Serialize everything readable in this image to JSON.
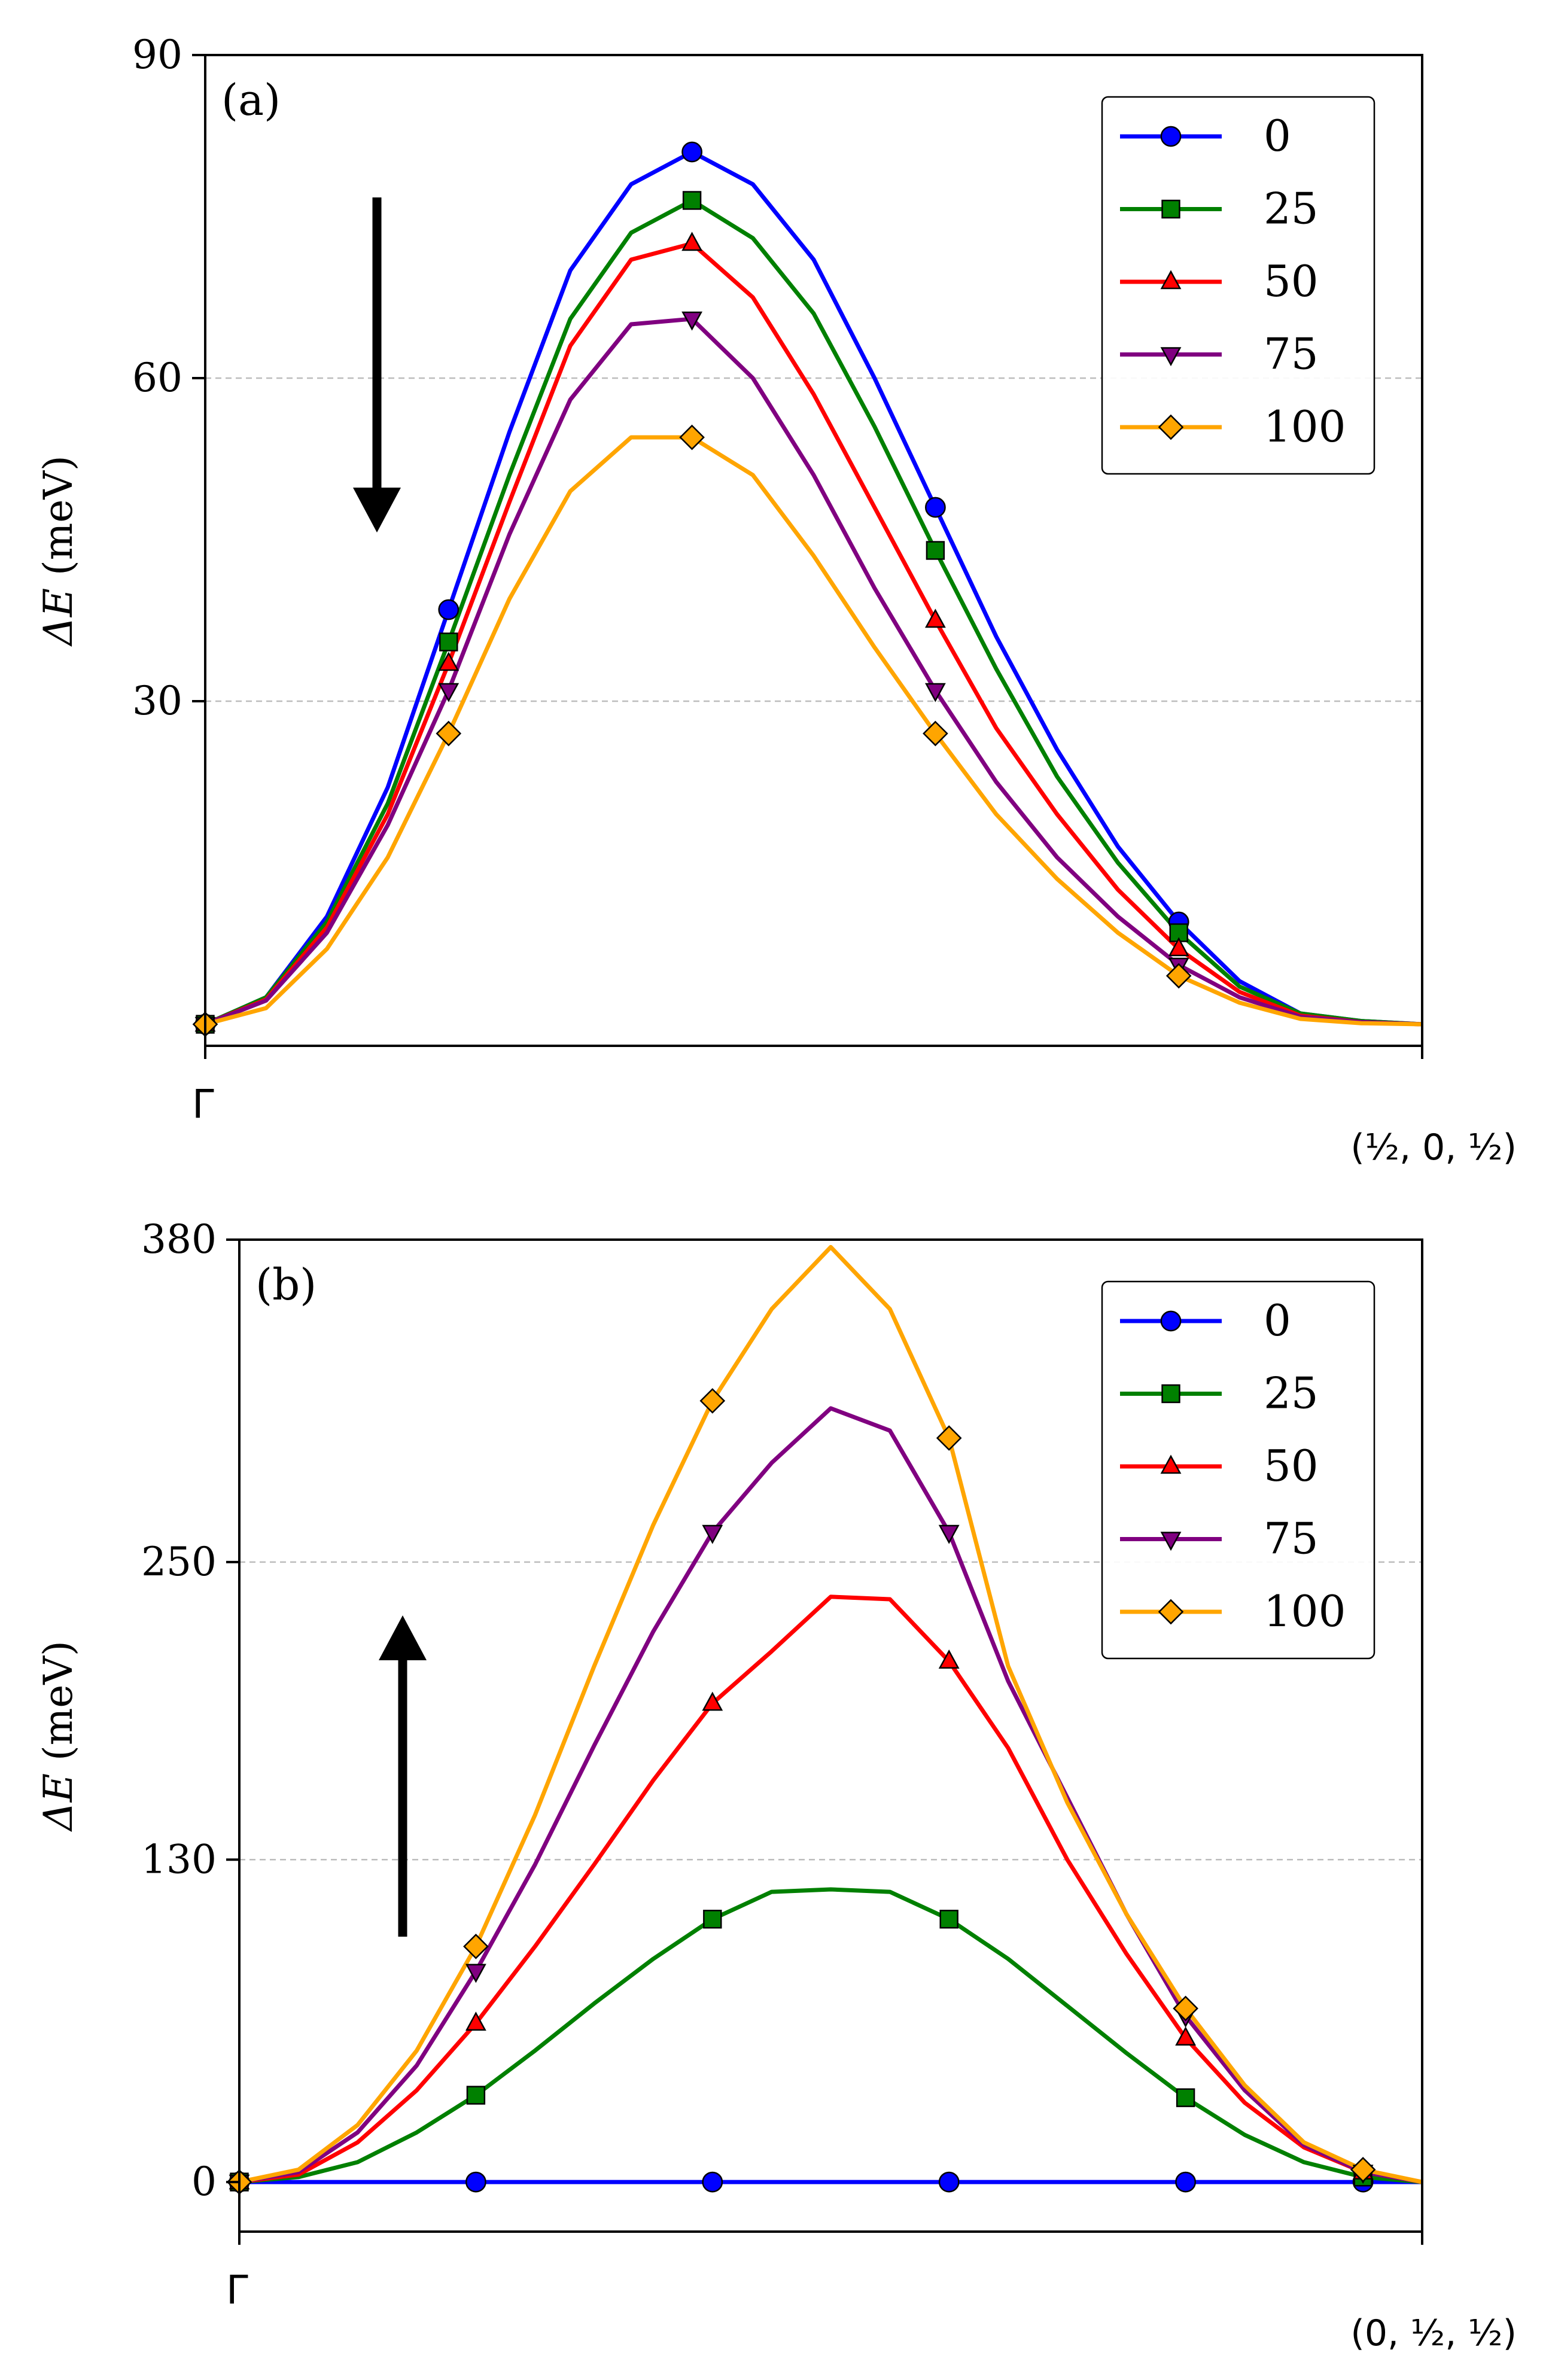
{
  "chart_data": [
    {
      "panel_label": "(a)",
      "type": "line",
      "ylabel_prefix": "ΔE",
      "ylabel_unit": " (meV)",
      "xtick_start": "Γ",
      "xtick_end": "(½, 0, ½)",
      "x": [
        0,
        0.05,
        0.1,
        0.15,
        0.2,
        0.25,
        0.3,
        0.35,
        0.4,
        0.45,
        0.5,
        0.55,
        0.6,
        0.65,
        0.7,
        0.75,
        0.8,
        0.85,
        0.9,
        0.95,
        1.0
      ],
      "marker_indices": [
        0,
        4,
        8,
        12,
        16
      ],
      "ylim": [
        -2,
        90
      ],
      "yticks": [
        30,
        60,
        90
      ],
      "grid": "horizontal dashed",
      "legend_position": "top-right",
      "arrow_direction": "down",
      "series": [
        {
          "name": "0",
          "color": "#0000ff",
          "marker": "circle",
          "values": [
            0,
            2.5,
            10,
            22,
            38.5,
            55,
            70,
            78,
            81,
            78,
            71,
            60,
            48,
            36,
            25.5,
            16.5,
            9.5,
            4,
            1,
            0.3,
            0
          ]
        },
        {
          "name": "25",
          "color": "#008000",
          "marker": "square",
          "values": [
            0,
            2.5,
            9.5,
            20.5,
            35.5,
            51,
            65.5,
            73.5,
            76.5,
            73,
            66,
            55.5,
            44,
            33,
            23,
            15,
            8.5,
            3.5,
            1,
            0.3,
            0
          ]
        },
        {
          "name": "50",
          "color": "#ff0000",
          "marker": "triangle-up",
          "values": [
            0,
            2.3,
            9,
            19.5,
            33.5,
            48.5,
            63,
            71,
            72.5,
            67.5,
            58.5,
            48,
            37.5,
            27.5,
            19.5,
            12.5,
            7,
            3,
            0.8,
            0.2,
            0
          ]
        },
        {
          "name": "75",
          "color": "#800080",
          "marker": "triangle-down",
          "values": [
            0,
            2.2,
            8.5,
            18.5,
            31,
            45.5,
            58,
            65,
            65.5,
            60,
            51,
            40.5,
            31,
            22.5,
            15.5,
            10,
            5.5,
            2.5,
            0.7,
            0.2,
            0
          ]
        },
        {
          "name": "100",
          "color": "#ffa500",
          "marker": "diamond",
          "values": [
            0,
            1.5,
            7,
            15.5,
            27,
            39.5,
            49.5,
            54.5,
            54.5,
            51,
            43.5,
            35,
            27,
            19.5,
            13.5,
            8.5,
            4.5,
            2,
            0.5,
            0.1,
            0
          ]
        }
      ]
    },
    {
      "panel_label": "(b)",
      "type": "line",
      "ylabel_prefix": "ΔE",
      "ylabel_unit": " (meV)",
      "xtick_start": "Γ",
      "xtick_end": "(0, ½, ½)",
      "x": [
        0,
        0.05,
        0.1,
        0.15,
        0.2,
        0.25,
        0.3,
        0.35,
        0.4,
        0.45,
        0.5,
        0.55,
        0.6,
        0.65,
        0.7,
        0.75,
        0.8,
        0.85,
        0.9,
        0.95,
        1.0
      ],
      "marker_indices": [
        0,
        4,
        8,
        12,
        16,
        19
      ],
      "ylim": [
        -20,
        380
      ],
      "yticks": [
        0,
        130,
        250,
        380
      ],
      "grid": "horizontal dashed",
      "legend_position": "top-right",
      "arrow_direction": "up",
      "series": [
        {
          "name": "0",
          "color": "#0000ff",
          "marker": "circle",
          "values": [
            0,
            0,
            0,
            0,
            0,
            0,
            0,
            0,
            0,
            0,
            0,
            0,
            0,
            0,
            0,
            0,
            0,
            0,
            0,
            0,
            0
          ]
        },
        {
          "name": "25",
          "color": "#008000",
          "marker": "square",
          "values": [
            0,
            2,
            8,
            20,
            35,
            53,
            72,
            90,
            106,
            117,
            118,
            117,
            106,
            90,
            71,
            52,
            34,
            19,
            8,
            2,
            0
          ]
        },
        {
          "name": "50",
          "color": "#ff0000",
          "marker": "triangle-up",
          "values": [
            0,
            3,
            16,
            37,
            64,
            95,
            128,
            162,
            193,
            214,
            236,
            235,
            210,
            175,
            130,
            92,
            58,
            32,
            14,
            4,
            0
          ]
        },
        {
          "name": "75",
          "color": "#800080",
          "marker": "triangle-down",
          "values": [
            0,
            4,
            20,
            47,
            85,
            128,
            176,
            222,
            262,
            290,
            312,
            303,
            262,
            202,
            155,
            108,
            67,
            37,
            15,
            4,
            0
          ]
        },
        {
          "name": "100",
          "color": "#ffa500",
          "marker": "diamond",
          "values": [
            0,
            5,
            23,
            53,
            95,
            148,
            208,
            265,
            315,
            352,
            377,
            352,
            300,
            208,
            153,
            108,
            70,
            39,
            16,
            5,
            0
          ]
        }
      ]
    }
  ]
}
